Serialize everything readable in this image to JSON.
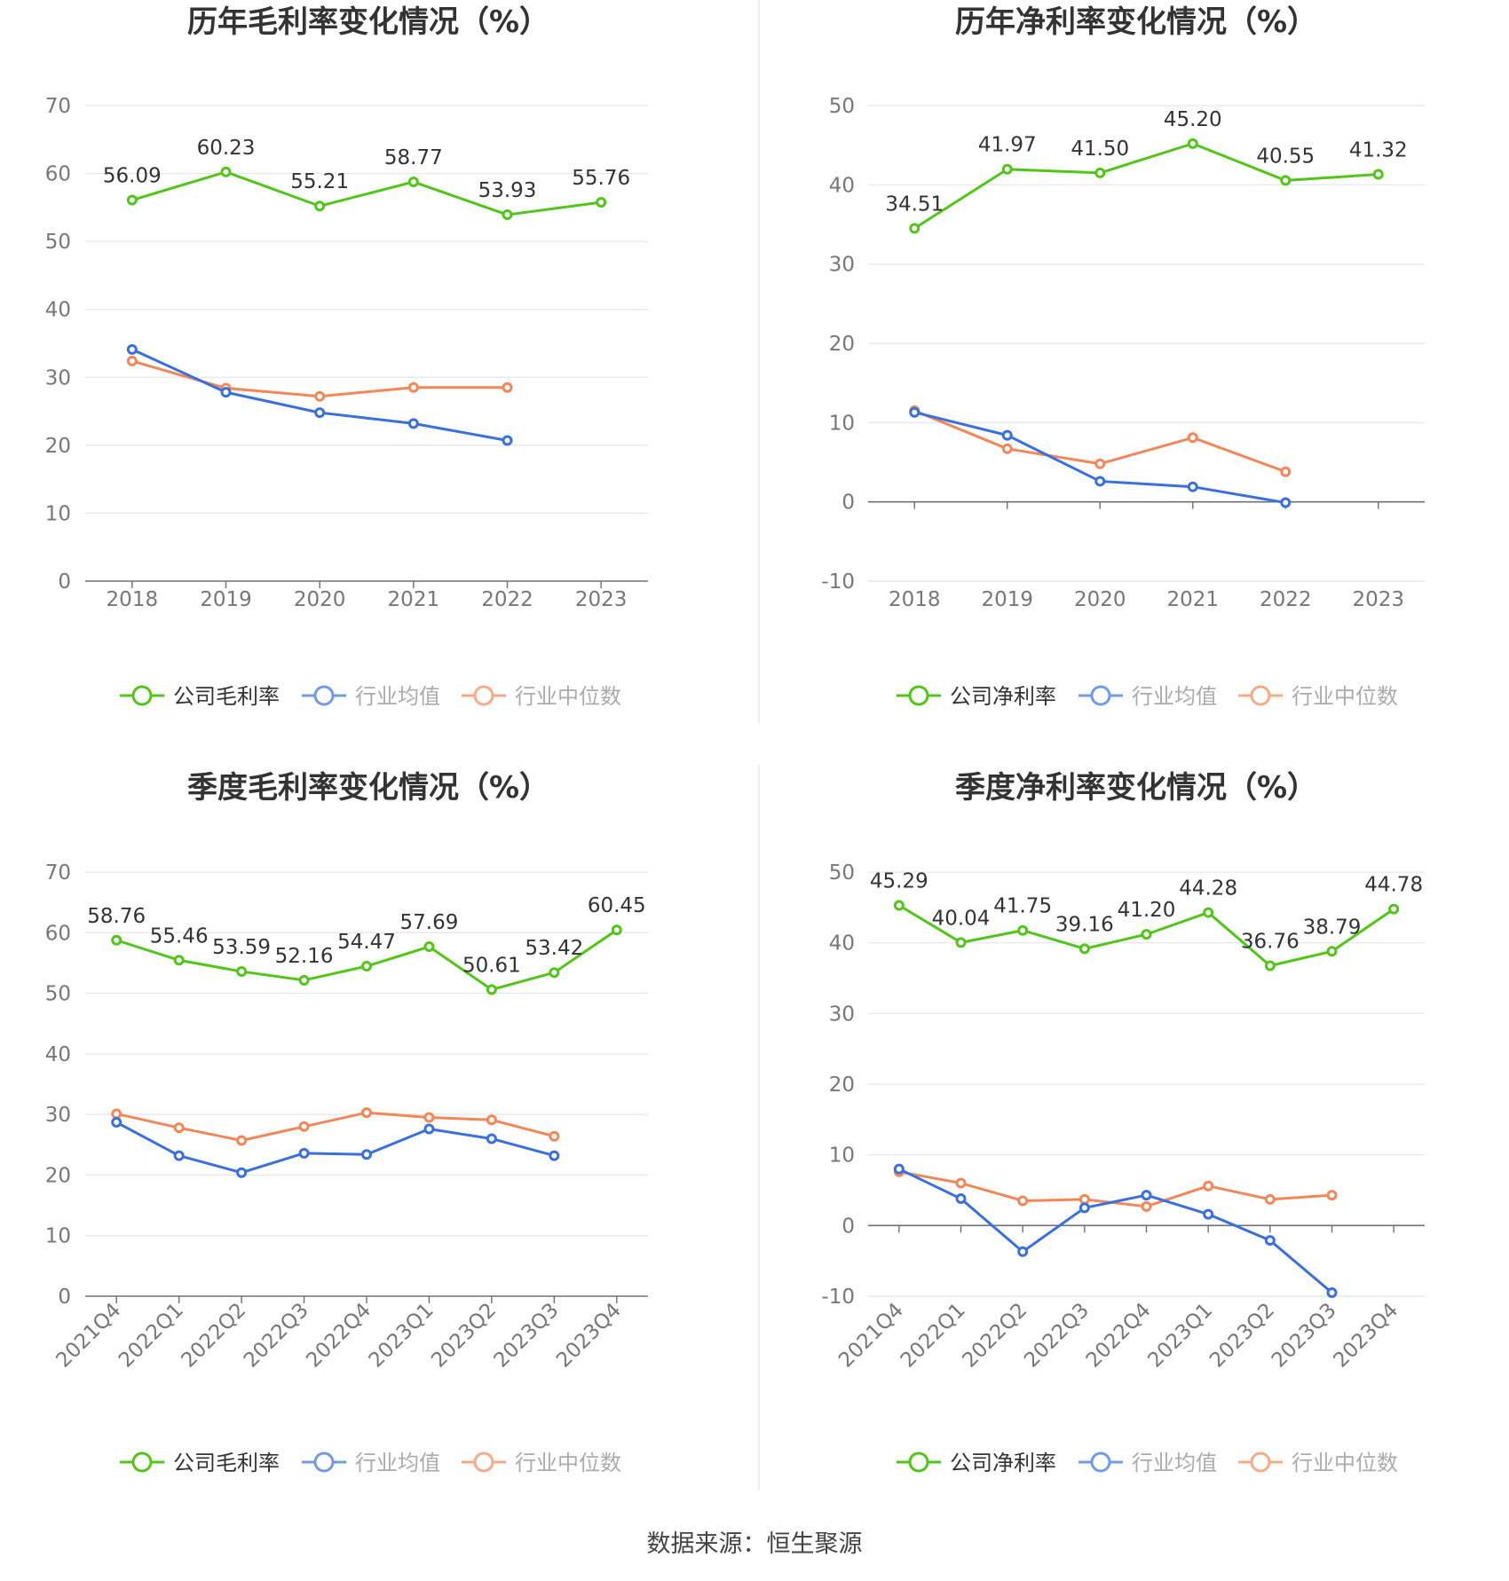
{
  "colors": {
    "company": "#52c41a",
    "average": "#3a6fdc",
    "median": "#f2875a",
    "grid": "#e3e6ee",
    "axis": "#6e7079",
    "divider": "#eeeeee"
  },
  "source": "数据来源：恒生聚源",
  "chart_data": [
    {
      "type": "line",
      "title": "历年毛利率变化情况（%）",
      "categories": [
        "2018",
        "2019",
        "2020",
        "2021",
        "2022",
        "2023"
      ],
      "ylim": [
        0,
        70
      ],
      "yticks": [
        "70",
        "60",
        "50",
        "40",
        "30",
        "20",
        "10",
        "0"
      ],
      "grid": true,
      "legend": "bottom",
      "series": [
        {
          "name": "公司毛利率",
          "values": [
            56.09,
            60.23,
            55.21,
            58.77,
            53.93,
            55.76
          ],
          "labels": [
            "56.09",
            "60.23",
            "55.21",
            "58.77",
            "53.93",
            "55.76"
          ]
        },
        {
          "name": "行业均值",
          "values": [
            34.1,
            27.8,
            24.8,
            23.2,
            20.7,
            null
          ]
        },
        {
          "name": "行业中位数",
          "values": [
            32.4,
            28.4,
            27.2,
            28.5,
            28.5,
            null
          ]
        }
      ]
    },
    {
      "type": "line",
      "title": "历年净利率变化情况（%）",
      "categories": [
        "2018",
        "2019",
        "2020",
        "2021",
        "2022",
        "2023"
      ],
      "ylim": [
        -10,
        50
      ],
      "yticks": [
        "50",
        "40",
        "30",
        "20",
        "10",
        "0",
        "-10"
      ],
      "grid": true,
      "legend": "bottom",
      "series": [
        {
          "name": "公司净利率",
          "values": [
            34.51,
            41.97,
            41.5,
            45.2,
            40.55,
            41.32
          ],
          "labels": [
            "34.51",
            "41.97",
            "41.50",
            "45.20",
            "40.55",
            "41.32"
          ]
        },
        {
          "name": "行业均值",
          "values": [
            11.3,
            8.4,
            2.6,
            1.9,
            -0.1,
            null
          ]
        },
        {
          "name": "行业中位数",
          "values": [
            11.5,
            6.7,
            4.8,
            8.1,
            3.8,
            null
          ]
        }
      ]
    },
    {
      "type": "line",
      "title": "季度毛利率变化情况（%）",
      "categories": [
        "2021Q4",
        "2022Q1",
        "2022Q2",
        "2022Q3",
        "2022Q4",
        "2023Q1",
        "2023Q2",
        "2023Q3",
        "2023Q4"
      ],
      "ylim": [
        0,
        70
      ],
      "yticks": [
        "70",
        "60",
        "50",
        "40",
        "30",
        "20",
        "10",
        "0"
      ],
      "grid": true,
      "legend": "bottom",
      "series": [
        {
          "name": "公司毛利率",
          "values": [
            58.76,
            55.46,
            53.59,
            52.16,
            54.47,
            57.69,
            50.61,
            53.42,
            60.45
          ],
          "labels": [
            "58.76",
            "55.46",
            "53.59",
            "52.16",
            "54.47",
            "57.69",
            "50.61",
            "53.42",
            "60.45"
          ]
        },
        {
          "name": "行业均值",
          "values": [
            28.7,
            23.2,
            20.4,
            23.6,
            23.4,
            27.6,
            26.0,
            23.2,
            null
          ]
        },
        {
          "name": "行业中位数",
          "values": [
            30.1,
            27.8,
            25.7,
            28.0,
            30.3,
            29.5,
            29.1,
            26.4,
            null
          ]
        }
      ]
    },
    {
      "type": "line",
      "title": "季度净利率变化情况（%）",
      "categories": [
        "2021Q4",
        "2022Q1",
        "2022Q2",
        "2022Q3",
        "2022Q4",
        "2023Q1",
        "2023Q2",
        "2023Q3",
        "2023Q4"
      ],
      "ylim": [
        -10,
        50
      ],
      "yticks": [
        "50",
        "40",
        "30",
        "20",
        "10",
        "0",
        "-10"
      ],
      "grid": true,
      "legend": "bottom",
      "series": [
        {
          "name": "公司净利率",
          "values": [
            45.29,
            40.04,
            41.75,
            39.16,
            41.2,
            44.28,
            36.76,
            38.79,
            44.78
          ],
          "labels": [
            "45.29",
            "40.04",
            "41.75",
            "39.16",
            "41.20",
            "44.28",
            "36.76",
            "38.79",
            "44.78"
          ]
        },
        {
          "name": "行业均值",
          "values": [
            8.0,
            3.8,
            -3.7,
            2.5,
            4.3,
            1.6,
            -2.1,
            -9.5,
            null
          ]
        },
        {
          "name": "行业中位数",
          "values": [
            7.6,
            6.0,
            3.5,
            3.7,
            2.7,
            5.6,
            3.7,
            4.3,
            null
          ]
        }
      ]
    }
  ]
}
